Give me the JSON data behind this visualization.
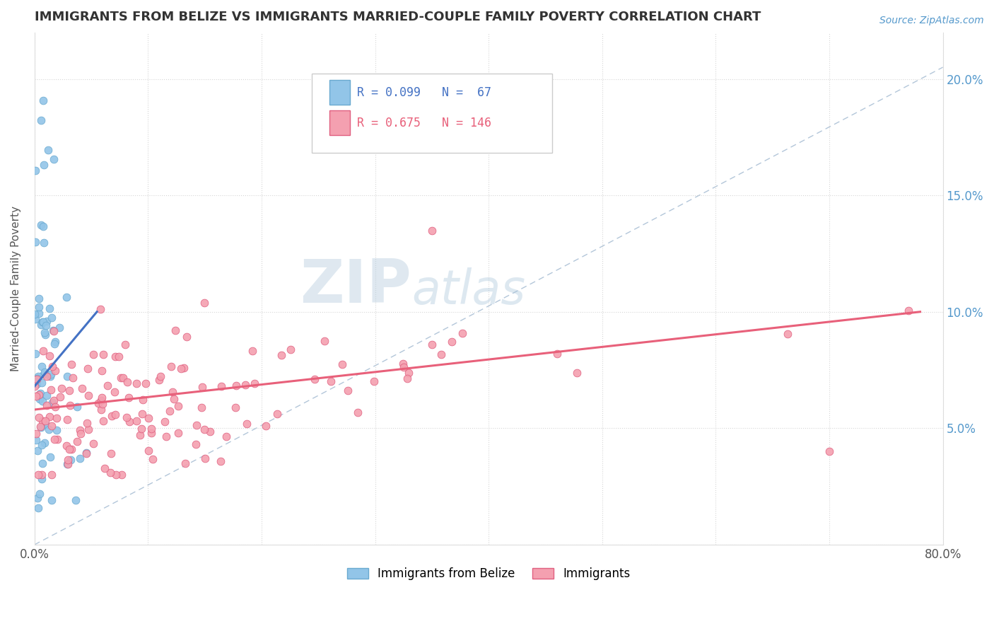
{
  "title": "IMMIGRANTS FROM BELIZE VS IMMIGRANTS MARRIED-COUPLE FAMILY POVERTY CORRELATION CHART",
  "source_text": "Source: ZipAtlas.com",
  "ylabel": "Married-Couple Family Poverty",
  "legend_label1": "Immigrants from Belize",
  "legend_label2": "Immigrants",
  "r1": 0.099,
  "n1": 67,
  "r2": 0.675,
  "n2": 146,
  "color1": "#92C5E8",
  "color2": "#F4A0B0",
  "trendline1_color": "#4472C4",
  "trendline2_color": "#E8607A",
  "refline_color": "#A0B8D0",
  "xlim": [
    0.0,
    0.8
  ],
  "ylim": [
    0.0,
    0.22
  ],
  "watermark_text": "ZIP",
  "watermark_text2": "atlas"
}
